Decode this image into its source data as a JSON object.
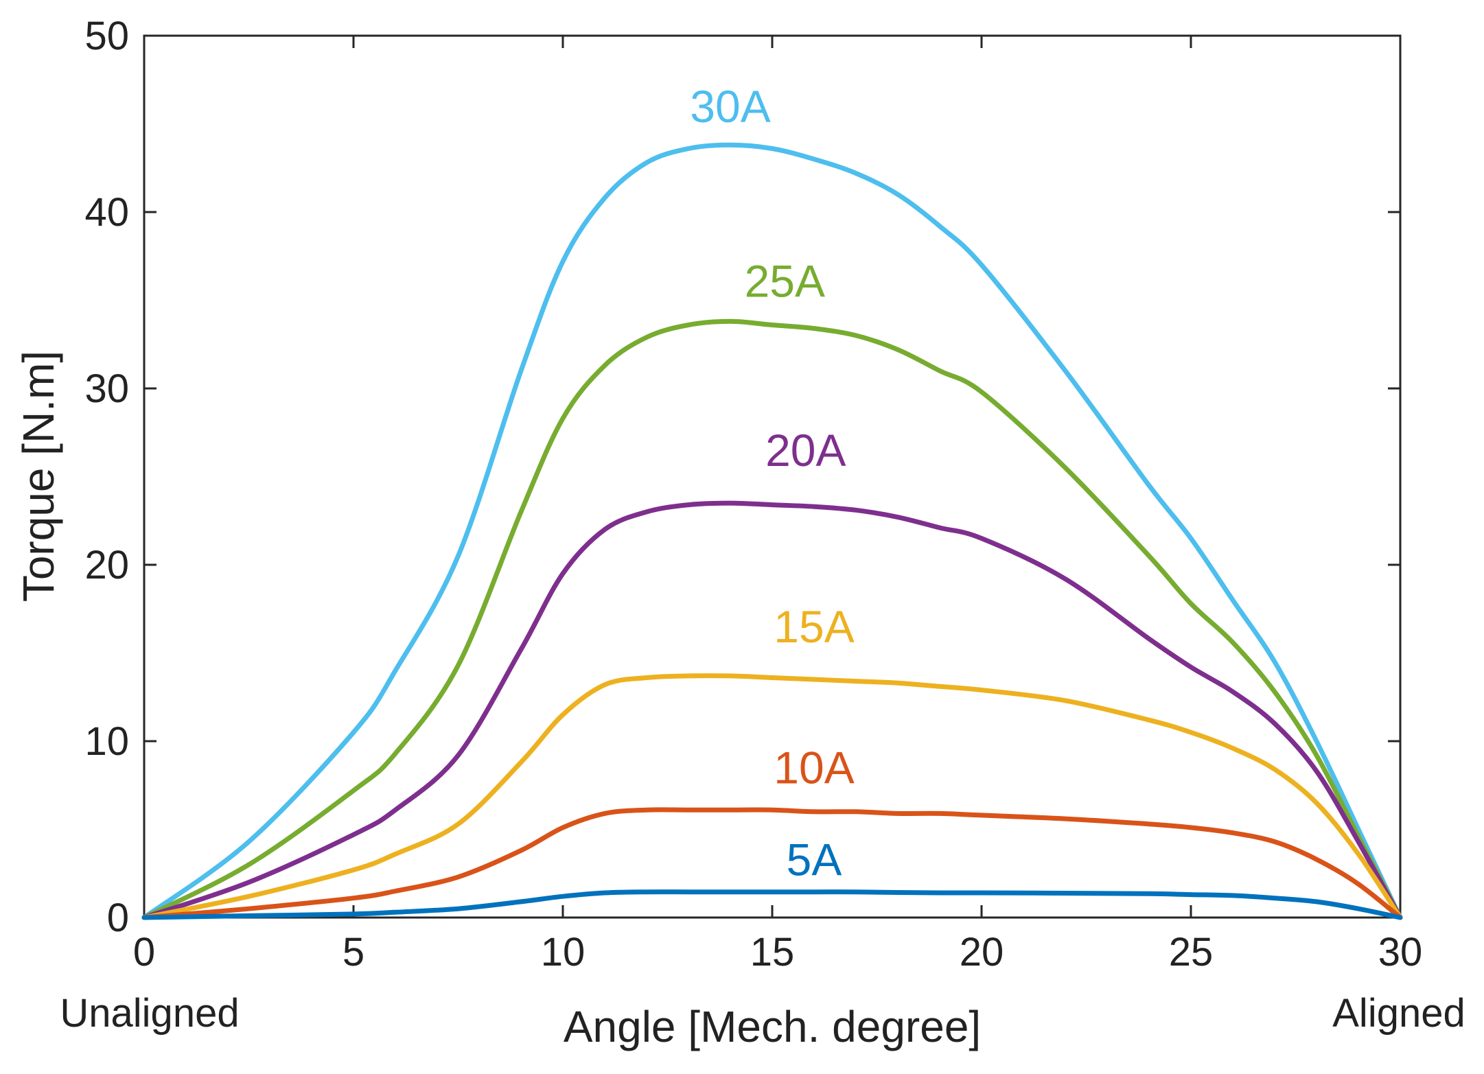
{
  "chart_data": {
    "type": "line",
    "title": "",
    "xlabel": "Angle [Mech. degree]",
    "ylabel": "Torque [N.m]",
    "xlim": [
      0,
      30
    ],
    "ylim": [
      0,
      50
    ],
    "xticks": [
      0,
      5,
      10,
      15,
      20,
      25,
      30
    ],
    "yticks": [
      0,
      10,
      20,
      30,
      40,
      50
    ],
    "x_end_labels": {
      "left": "Unaligned",
      "right": "Aligned"
    },
    "grid": false,
    "legend": "none (inline labels above curves)",
    "x": [
      0,
      2.5,
      5,
      6,
      7.5,
      9,
      10,
      11,
      12,
      13,
      14,
      15,
      16,
      17,
      18,
      19,
      20,
      22,
      24,
      25,
      26,
      27,
      28,
      29,
      30
    ],
    "series": [
      {
        "name": "30A",
        "label": "30A",
        "color": "#4DBEEE",
        "values": [
          0,
          4.3,
          10.5,
          14.0,
          20.5,
          31.0,
          37.2,
          40.8,
          42.8,
          43.6,
          43.8,
          43.6,
          43.0,
          42.2,
          41.0,
          39.2,
          37.0,
          31.0,
          24.5,
          21.5,
          18.0,
          14.5,
          10.0,
          5.0,
          0
        ],
        "label_pos": [
          14.0,
          45.1
        ]
      },
      {
        "name": "25A",
        "label": "25A",
        "color": "#77AC30",
        "values": [
          0,
          3.0,
          7.2,
          9.3,
          14.3,
          23.0,
          28.3,
          31.3,
          32.9,
          33.6,
          33.8,
          33.6,
          33.4,
          33.0,
          32.2,
          31.0,
          29.8,
          25.5,
          20.5,
          17.8,
          15.6,
          12.8,
          9.2,
          4.6,
          0
        ],
        "label_pos": [
          15.3,
          35.2
        ]
      },
      {
        "name": "20A",
        "label": "20A",
        "color": "#7E2F8E",
        "values": [
          0,
          2.0,
          4.7,
          6.1,
          9.2,
          15.2,
          19.5,
          22.0,
          23.0,
          23.4,
          23.5,
          23.4,
          23.3,
          23.1,
          22.7,
          22.1,
          21.5,
          19.2,
          15.8,
          14.2,
          12.8,
          11.0,
          8.3,
          4.3,
          0
        ],
        "label_pos": [
          15.8,
          25.6
        ]
      },
      {
        "name": "15A",
        "label": "15A",
        "color": "#EDB120",
        "values": [
          0,
          1.2,
          2.7,
          3.6,
          5.3,
          8.8,
          11.5,
          13.2,
          13.6,
          13.7,
          13.7,
          13.6,
          13.5,
          13.4,
          13.3,
          13.1,
          12.9,
          12.3,
          11.2,
          10.5,
          9.6,
          8.4,
          6.5,
          3.6,
          0
        ],
        "label_pos": [
          16.0,
          15.6
        ]
      },
      {
        "name": "10A",
        "label": "10A",
        "color": "#D95319",
        "values": [
          0,
          0.5,
          1.1,
          1.5,
          2.3,
          3.8,
          5.1,
          5.9,
          6.1,
          6.1,
          6.1,
          6.1,
          6.0,
          6.0,
          5.9,
          5.9,
          5.8,
          5.6,
          5.3,
          5.1,
          4.8,
          4.3,
          3.3,
          1.9,
          0
        ],
        "label_pos": [
          16.0,
          7.6
        ]
      },
      {
        "name": "5A",
        "label": "5A",
        "color": "#0072BD",
        "values": [
          0,
          0.1,
          0.2,
          0.3,
          0.5,
          0.9,
          1.2,
          1.4,
          1.45,
          1.45,
          1.45,
          1.45,
          1.45,
          1.45,
          1.42,
          1.4,
          1.4,
          1.38,
          1.35,
          1.3,
          1.25,
          1.1,
          0.9,
          0.5,
          0
        ],
        "label_pos": [
          16.0,
          2.4
        ]
      }
    ]
  }
}
